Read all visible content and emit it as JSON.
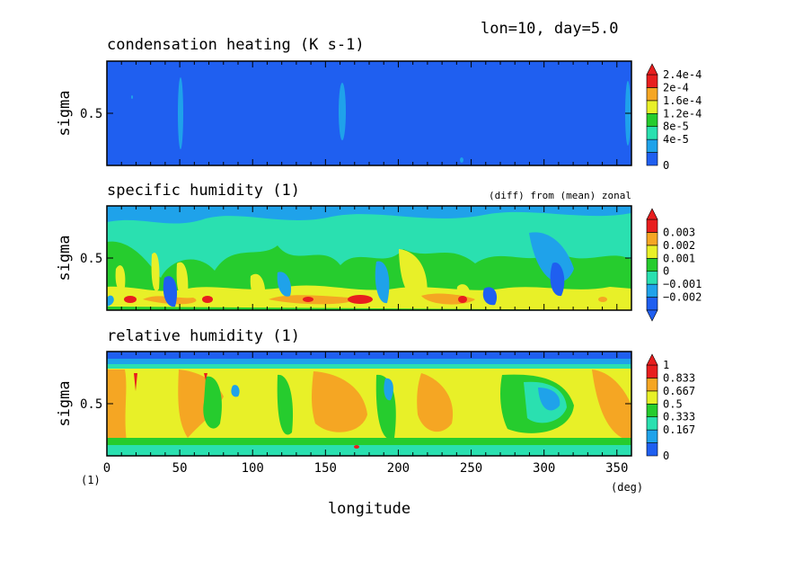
{
  "header": {
    "run_info": "lon=10, day=5.0"
  },
  "chart_data": [
    {
      "type": "heatmap",
      "title": "condensation heating (K s-1)",
      "ylabel": "sigma",
      "yticks": [
        "0.5"
      ],
      "xlim": [
        0,
        360
      ],
      "ylim": [
        0,
        1
      ],
      "colorbar": {
        "labels": [
          "2.4e-4",
          "2e-4",
          "1.6e-4",
          "1.2e-4",
          "8e-5",
          "4e-5",
          "0"
        ],
        "levels": [
          0,
          4e-05,
          8e-05,
          0.00012,
          0.00016,
          0.0002,
          0.00024
        ],
        "colors": [
          "#1f5ff0",
          "#1fa2ea",
          "#2ae0b0",
          "#26cc2e",
          "#e8f028",
          "#f5a623",
          "#e81e1e"
        ],
        "extend": "max"
      },
      "annotation": "",
      "features": [
        {
          "kind": "column",
          "lon": 50,
          "value": 5e-05
        },
        {
          "kind": "column",
          "lon": 160,
          "value": 5e-05
        },
        {
          "kind": "column",
          "lon": 354,
          "value": 5e-05
        }
      ]
    },
    {
      "type": "heatmap",
      "title": "specific humidity (1)",
      "ylabel": "sigma",
      "yticks": [
        "0.5"
      ],
      "xlim": [
        0,
        360
      ],
      "ylim": [
        0,
        1
      ],
      "annotation": "(diff) from (mean) zonal",
      "colorbar": {
        "labels": [
          "0.003",
          "0.002",
          "0.001",
          "0",
          "−0.001",
          "−0.002"
        ],
        "levels": [
          -0.003,
          -0.002,
          -0.001,
          0,
          0.001,
          0.002,
          0.003
        ],
        "colors": [
          "#1f5ff0",
          "#1fa2ea",
          "#2ae0b0",
          "#26cc2e",
          "#e8f028",
          "#f5a623",
          "#e81e1e"
        ],
        "extend": "both"
      }
    },
    {
      "type": "heatmap",
      "title": "relative humidity (1)",
      "ylabel": "sigma",
      "yticks": [
        "0.5"
      ],
      "xlim": [
        0,
        360
      ],
      "ylim": [
        0,
        1
      ],
      "annotation": "",
      "colorbar": {
        "labels": [
          "1",
          "0.833",
          "0.667",
          "0.5",
          "0.333",
          "0.167",
          "0"
        ],
        "levels": [
          0,
          0.167,
          0.333,
          0.5,
          0.667,
          0.833,
          1
        ],
        "colors": [
          "#1f5ff0",
          "#1fa2ea",
          "#2ae0b0",
          "#26cc2e",
          "#e8f028",
          "#f5a623",
          "#e81e1e"
        ],
        "extend": "max"
      },
      "xticks": [
        "0",
        "50",
        "100",
        "150",
        "200",
        "250",
        "300",
        "350"
      ],
      "xlabel": "longitude",
      "xunit": "(deg)",
      "yunit": "(1)"
    }
  ]
}
